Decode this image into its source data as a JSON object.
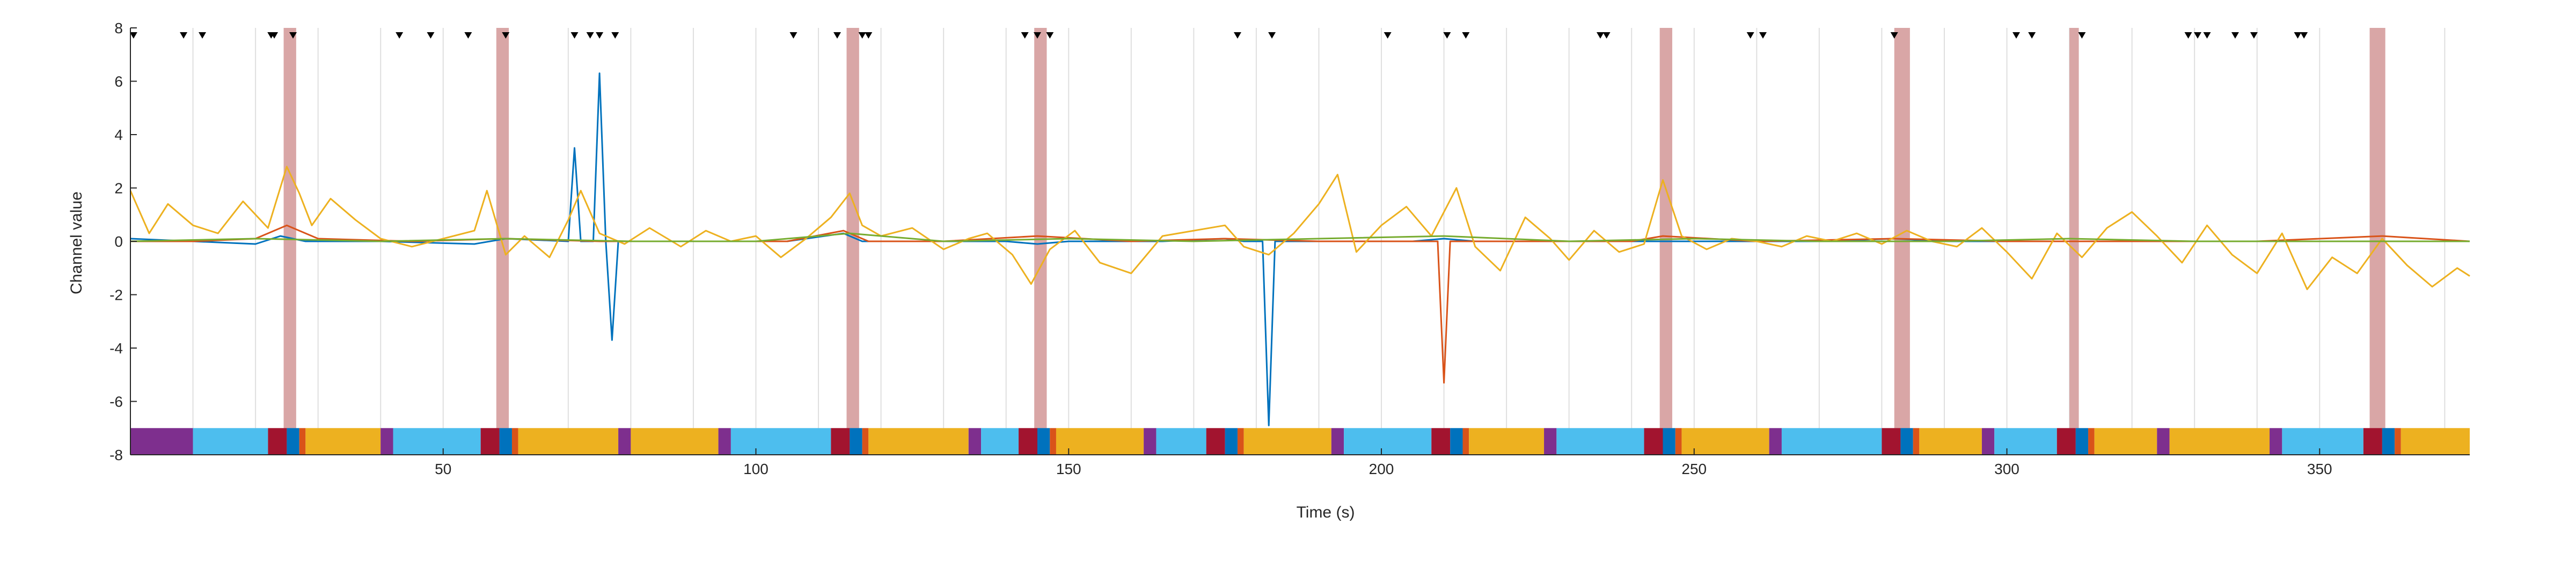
{
  "chart_data": {
    "type": "line",
    "title": "",
    "xlabel": "Time (s)",
    "ylabel": "Channel value",
    "xlim": [
      0,
      374
    ],
    "ylim": [
      -8,
      8
    ],
    "x_ticks": [
      50,
      100,
      150,
      200,
      250,
      300,
      350
    ],
    "y_ticks": [
      8,
      6,
      4,
      2,
      0,
      -2,
      -4,
      -6,
      -8
    ],
    "grid": "vertical lines every 10 s",
    "legend": "none",
    "series": [
      {
        "color": "#0072BD",
        "x": [
          0,
          10,
          20,
          24,
          28,
          40,
          55,
          60,
          70,
          71,
          72,
          74,
          75,
          76,
          77,
          78,
          90,
          105,
          114,
          117,
          125,
          140,
          145,
          150,
          165,
          175,
          178,
          181,
          182,
          183,
          186,
          195,
          205,
          210,
          215,
          230,
          245,
          255,
          270,
          282,
          290,
          300,
          310,
          320,
          330,
          340,
          350,
          360,
          370,
          374
        ],
        "y": [
          0.1,
          0.0,
          -0.1,
          0.2,
          0.0,
          0.0,
          -0.1,
          0.1,
          0.0,
          3.5,
          0.0,
          0.0,
          6.3,
          0.0,
          -3.7,
          0.0,
          0.0,
          0.0,
          0.3,
          0.0,
          0.0,
          0.0,
          -0.1,
          0.0,
          0.0,
          0.1,
          0.0,
          0.0,
          -6.9,
          0.0,
          0.0,
          0.0,
          0.0,
          0.1,
          0.0,
          0.0,
          0.0,
          0.0,
          0.0,
          0.1,
          0.0,
          0.0,
          0.0,
          0.0,
          0.0,
          0.0,
          0.0,
          0.0,
          0.0,
          0.0
        ]
      },
      {
        "color": "#D95319",
        "x": [
          0,
          10,
          20,
          25,
          30,
          45,
          60,
          75,
          90,
          105,
          114,
          118,
          130,
          145,
          160,
          175,
          190,
          205,
          209,
          210,
          211,
          212,
          225,
          240,
          245,
          260,
          282,
          300,
          320,
          340,
          360,
          374
        ],
        "y": [
          0.0,
          0.0,
          0.1,
          0.6,
          0.1,
          0.0,
          0.1,
          0.0,
          0.0,
          0.0,
          0.4,
          0.0,
          0.0,
          0.2,
          0.0,
          0.1,
          0.0,
          0.0,
          0.0,
          -5.3,
          0.0,
          0.0,
          0.0,
          0.0,
          0.2,
          0.0,
          0.1,
          0.0,
          0.0,
          0.0,
          0.2,
          0.0
        ]
      },
      {
        "color": "#EDB120",
        "x": [
          0,
          3,
          6,
          10,
          14,
          18,
          22,
          25,
          27,
          29,
          32,
          36,
          40,
          45,
          50,
          55,
          57,
          60,
          63,
          67,
          70,
          72,
          75,
          79,
          83,
          88,
          92,
          96,
          100,
          104,
          108,
          112,
          115,
          117,
          120,
          125,
          130,
          134,
          137,
          141,
          144,
          147,
          151,
          155,
          160,
          165,
          170,
          175,
          178,
          182,
          186,
          190,
          193,
          196,
          200,
          204,
          208,
          212,
          215,
          219,
          223,
          227,
          230,
          234,
          238,
          242,
          245,
          248,
          252,
          256,
          260,
          264,
          268,
          272,
          276,
          280,
          284,
          288,
          292,
          296,
          300,
          304,
          308,
          312,
          316,
          320,
          324,
          328,
          332,
          336,
          340,
          344,
          348,
          352,
          356,
          360,
          364,
          368,
          372,
          374
        ],
        "y": [
          1.9,
          0.3,
          1.4,
          0.6,
          0.3,
          1.5,
          0.5,
          2.8,
          1.8,
          0.6,
          1.6,
          0.8,
          0.1,
          -0.2,
          0.1,
          0.4,
          1.9,
          -0.5,
          0.2,
          -0.6,
          0.8,
          1.9,
          0.3,
          -0.1,
          0.5,
          -0.2,
          0.4,
          0.0,
          0.2,
          -0.6,
          0.1,
          0.9,
          1.8,
          0.6,
          0.2,
          0.5,
          -0.3,
          0.1,
          0.3,
          -0.5,
          -1.6,
          -0.3,
          0.4,
          -0.8,
          -1.2,
          0.2,
          0.4,
          0.6,
          -0.2,
          -0.5,
          0.3,
          1.4,
          2.5,
          -0.4,
          0.6,
          1.3,
          0.2,
          2.0,
          -0.2,
          -1.1,
          0.9,
          0.1,
          -0.7,
          0.4,
          -0.4,
          -0.1,
          2.3,
          0.2,
          -0.3,
          0.1,
          0.0,
          -0.2,
          0.2,
          0.0,
          0.3,
          -0.1,
          0.4,
          0.0,
          -0.2,
          0.5,
          -0.4,
          -1.4,
          0.3,
          -0.6,
          0.5,
          1.1,
          0.2,
          -0.8,
          0.6,
          -0.5,
          -1.2,
          0.3,
          -1.8,
          -0.6,
          -1.2,
          0.1,
          -0.9,
          -1.7,
          -1.0,
          -1.3
        ]
      },
      {
        "color": "#77AC30",
        "x": [
          0,
          20,
          40,
          60,
          80,
          100,
          115,
          130,
          150,
          170,
          190,
          210,
          230,
          250,
          270,
          290,
          310,
          330,
          350,
          374
        ],
        "y": [
          0.0,
          0.1,
          0.0,
          0.1,
          0.0,
          0.0,
          0.3,
          0.0,
          0.1,
          0.0,
          0.1,
          0.2,
          0.0,
          0.1,
          0.0,
          0.0,
          0.1,
          0.0,
          0.0,
          0.0
        ]
      }
    ],
    "event_markers_x": [
      0.5,
      8.5,
      11.5,
      22.5,
      23,
      26,
      43,
      48,
      54,
      60,
      71,
      73.5,
      75,
      77.5,
      106,
      113,
      117,
      118,
      143,
      145,
      147,
      177,
      182.5,
      201,
      210.5,
      213.5,
      235,
      236,
      259,
      261,
      282,
      301.5,
      304,
      312,
      329,
      330.5,
      332,
      336.5,
      339.5,
      346.5,
      347.5
    ],
    "shaded_intervals": [
      [
        24.5,
        26.5
      ],
      [
        58.5,
        60.5
      ],
      [
        114.5,
        116.5
      ],
      [
        144.5,
        146.5
      ],
      [
        244.5,
        246.5
      ],
      [
        282,
        284.5
      ],
      [
        310,
        311.5
      ],
      [
        358,
        360.5
      ]
    ],
    "state_bar": [
      {
        "start": 0,
        "end": 10,
        "color": "#7E2F8E"
      },
      {
        "start": 10,
        "end": 22,
        "color": "#4DBEEE"
      },
      {
        "start": 22,
        "end": 25,
        "color": "#A2142F"
      },
      {
        "start": 25,
        "end": 27,
        "color": "#0072BD"
      },
      {
        "start": 27,
        "end": 28,
        "color": "#D95319"
      },
      {
        "start": 28,
        "end": 40,
        "color": "#EDB120"
      },
      {
        "start": 40,
        "end": 42,
        "color": "#7E2F8E"
      },
      {
        "start": 42,
        "end": 56,
        "color": "#4DBEEE"
      },
      {
        "start": 56,
        "end": 59,
        "color": "#A2142F"
      },
      {
        "start": 59,
        "end": 61,
        "color": "#0072BD"
      },
      {
        "start": 61,
        "end": 62,
        "color": "#D95319"
      },
      {
        "start": 62,
        "end": 78,
        "color": "#EDB120"
      },
      {
        "start": 78,
        "end": 80,
        "color": "#7E2F8E"
      },
      {
        "start": 80,
        "end": 94,
        "color": "#EDB120"
      },
      {
        "start": 94,
        "end": 96,
        "color": "#7E2F8E"
      },
      {
        "start": 96,
        "end": 112,
        "color": "#4DBEEE"
      },
      {
        "start": 112,
        "end": 115,
        "color": "#A2142F"
      },
      {
        "start": 115,
        "end": 117,
        "color": "#0072BD"
      },
      {
        "start": 117,
        "end": 118,
        "color": "#D95319"
      },
      {
        "start": 118,
        "end": 134,
        "color": "#EDB120"
      },
      {
        "start": 134,
        "end": 136,
        "color": "#7E2F8E"
      },
      {
        "start": 136,
        "end": 142,
        "color": "#4DBEEE"
      },
      {
        "start": 142,
        "end": 145,
        "color": "#A2142F"
      },
      {
        "start": 145,
        "end": 147,
        "color": "#0072BD"
      },
      {
        "start": 147,
        "end": 148,
        "color": "#D95319"
      },
      {
        "start": 148,
        "end": 162,
        "color": "#EDB120"
      },
      {
        "start": 162,
        "end": 164,
        "color": "#7E2F8E"
      },
      {
        "start": 164,
        "end": 172,
        "color": "#4DBEEE"
      },
      {
        "start": 172,
        "end": 175,
        "color": "#A2142F"
      },
      {
        "start": 175,
        "end": 177,
        "color": "#0072BD"
      },
      {
        "start": 177,
        "end": 178,
        "color": "#D95319"
      },
      {
        "start": 178,
        "end": 192,
        "color": "#EDB120"
      },
      {
        "start": 192,
        "end": 194,
        "color": "#7E2F8E"
      },
      {
        "start": 194,
        "end": 208,
        "color": "#4DBEEE"
      },
      {
        "start": 208,
        "end": 211,
        "color": "#A2142F"
      },
      {
        "start": 211,
        "end": 213,
        "color": "#0072BD"
      },
      {
        "start": 213,
        "end": 214,
        "color": "#D95319"
      },
      {
        "start": 214,
        "end": 226,
        "color": "#EDB120"
      },
      {
        "start": 226,
        "end": 228,
        "color": "#7E2F8E"
      },
      {
        "start": 228,
        "end": 242,
        "color": "#4DBEEE"
      },
      {
        "start": 242,
        "end": 245,
        "color": "#A2142F"
      },
      {
        "start": 245,
        "end": 247,
        "color": "#0072BD"
      },
      {
        "start": 247,
        "end": 248,
        "color": "#D95319"
      },
      {
        "start": 248,
        "end": 262,
        "color": "#EDB120"
      },
      {
        "start": 262,
        "end": 264,
        "color": "#7E2F8E"
      },
      {
        "start": 264,
        "end": 280,
        "color": "#4DBEEE"
      },
      {
        "start": 280,
        "end": 283,
        "color": "#A2142F"
      },
      {
        "start": 283,
        "end": 285,
        "color": "#0072BD"
      },
      {
        "start": 285,
        "end": 286,
        "color": "#D95319"
      },
      {
        "start": 286,
        "end": 296,
        "color": "#EDB120"
      },
      {
        "start": 296,
        "end": 298,
        "color": "#7E2F8E"
      },
      {
        "start": 298,
        "end": 308,
        "color": "#4DBEEE"
      },
      {
        "start": 308,
        "end": 311,
        "color": "#A2142F"
      },
      {
        "start": 311,
        "end": 313,
        "color": "#0072BD"
      },
      {
        "start": 313,
        "end": 314,
        "color": "#D95319"
      },
      {
        "start": 314,
        "end": 324,
        "color": "#EDB120"
      },
      {
        "start": 324,
        "end": 326,
        "color": "#7E2F8E"
      },
      {
        "start": 326,
        "end": 342,
        "color": "#EDB120"
      },
      {
        "start": 342,
        "end": 344,
        "color": "#7E2F8E"
      },
      {
        "start": 344,
        "end": 357,
        "color": "#4DBEEE"
      },
      {
        "start": 357,
        "end": 360,
        "color": "#A2142F"
      },
      {
        "start": 360,
        "end": 362,
        "color": "#0072BD"
      },
      {
        "start": 362,
        "end": 363,
        "color": "#D95319"
      },
      {
        "start": 363,
        "end": 374,
        "color": "#EDB120"
      }
    ],
    "colors": {
      "shade": "#D9A6A6",
      "axis": "#262626",
      "grid": "#DFDFDF",
      "marker": "#000000"
    }
  }
}
